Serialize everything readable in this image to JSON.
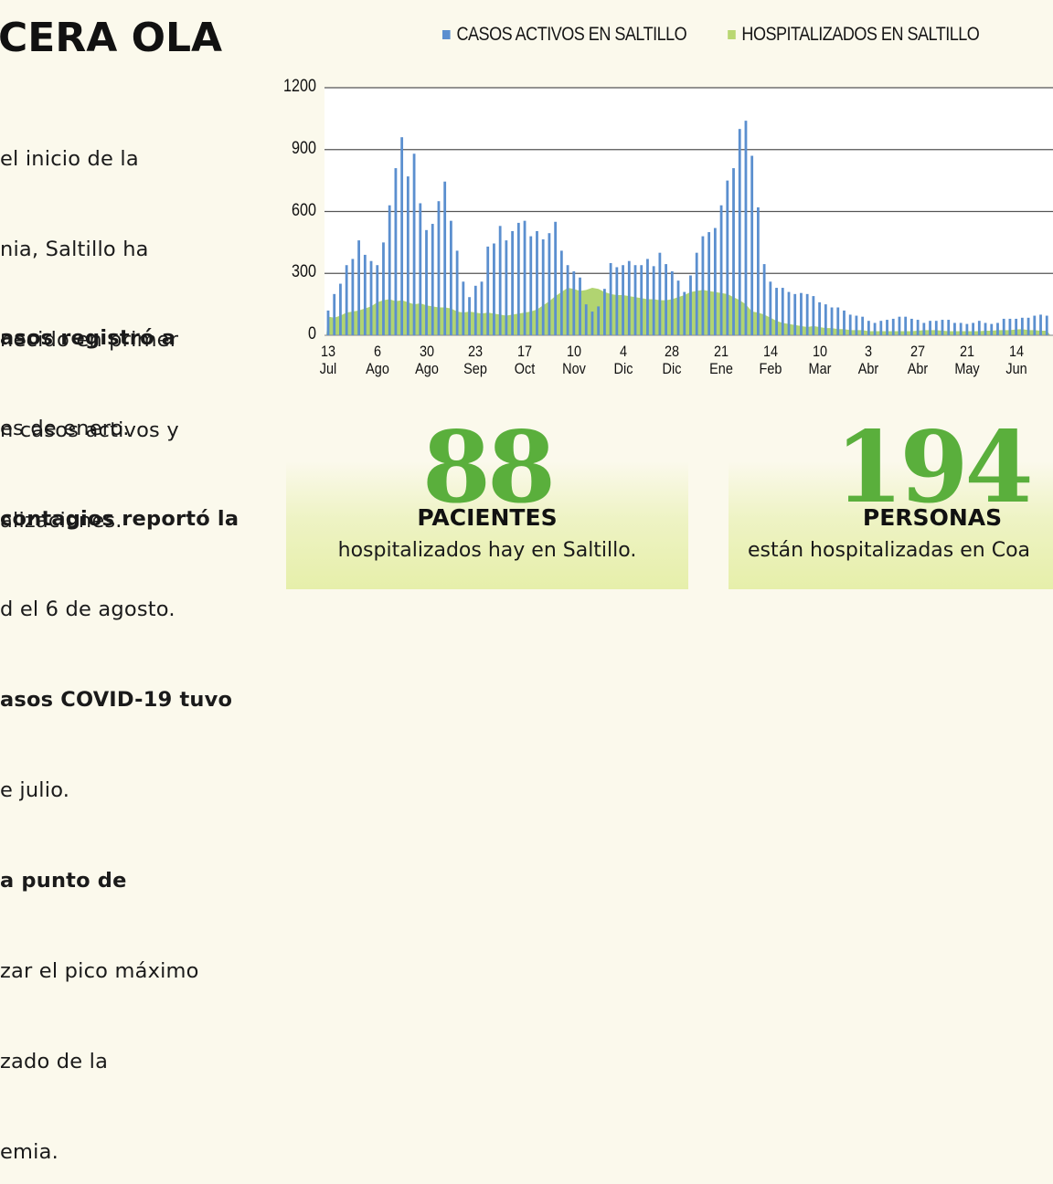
{
  "header": {
    "title": "CERA OLA"
  },
  "intro": {
    "lines": [
      "el inicio de la",
      "nia, Saltillo ha",
      "necido en primer",
      "n casos activos y",
      "alizaciones."
    ]
  },
  "facts": [
    {
      "bold": "asos registró a",
      "rest": ""
    },
    {
      "bold": "",
      "rest": "es de enero."
    },
    {
      "bold": "contagios reportó la",
      "rest": ""
    },
    {
      "bold": "",
      "rest": "d el 6 de agosto."
    },
    {
      "bold": "asos COVID-19 tuvo",
      "rest": ""
    },
    {
      "bold": "",
      "rest": "e julio."
    },
    {
      "bold": "a punto de",
      "rest": ""
    },
    {
      "bold": "",
      "rest": "zar el pico máximo"
    },
    {
      "bold": "",
      "rest": "zado de la"
    },
    {
      "bold": "",
      "rest": "emia."
    }
  ],
  "colors": {
    "active": "#5b8fcf",
    "hospital": "#a9cf62",
    "accent": "#5aaf3c",
    "background": "#fbf9ec"
  },
  "chart_data": {
    "type": "bar",
    "title": "",
    "xlabel": "",
    "ylabel": "",
    "ylim": [
      0,
      1200
    ],
    "yticks": [
      0,
      300,
      600,
      900,
      1200
    ],
    "grid": true,
    "legend_position": "top",
    "x_tick_labels": [
      {
        "day": "13",
        "month": "Jul",
        "index": 0
      },
      {
        "day": "6",
        "month": "Ago",
        "index": 8
      },
      {
        "day": "30",
        "month": "Ago",
        "index": 16
      },
      {
        "day": "23",
        "month": "Sep",
        "index": 24
      },
      {
        "day": "17",
        "month": "Oct",
        "index": 32
      },
      {
        "day": "10",
        "month": "Nov",
        "index": 40
      },
      {
        "day": "4",
        "month": "Dic",
        "index": 48
      },
      {
        "day": "28",
        "month": "Dic",
        "index": 56
      },
      {
        "day": "21",
        "month": "Ene",
        "index": 64
      },
      {
        "day": "14",
        "month": "Feb",
        "index": 72
      },
      {
        "day": "10",
        "month": "Mar",
        "index": 80
      },
      {
        "day": "3",
        "month": "Abr",
        "index": 88
      },
      {
        "day": "27",
        "month": "Abr",
        "index": 96
      },
      {
        "day": "21",
        "month": "May",
        "index": 104
      },
      {
        "day": "14",
        "month": "Jun",
        "index": 112
      }
    ],
    "series": [
      {
        "name": "CASOS ACTIVOS EN SALTILLO",
        "type": "bar",
        "color": "#5b8fcf",
        "values": [
          120,
          200,
          250,
          340,
          370,
          460,
          390,
          360,
          340,
          450,
          630,
          810,
          960,
          770,
          880,
          640,
          510,
          540,
          650,
          745,
          555,
          410,
          260,
          185,
          240,
          260,
          430,
          445,
          530,
          460,
          505,
          545,
          555,
          480,
          505,
          465,
          495,
          550,
          410,
          340,
          310,
          280,
          150,
          115,
          140,
          225,
          350,
          330,
          340,
          360,
          340,
          340,
          370,
          335,
          400,
          345,
          310,
          265,
          210,
          290,
          400,
          480,
          500,
          520,
          630,
          750,
          810,
          1000,
          1040,
          870,
          620,
          345,
          260,
          230,
          230,
          210,
          200,
          205,
          200,
          190,
          160,
          150,
          135,
          135,
          120,
          100,
          95,
          90,
          70,
          60,
          70,
          75,
          80,
          90,
          90,
          80,
          75,
          60,
          70,
          70,
          75,
          75,
          60,
          60,
          55,
          60,
          70,
          60,
          55,
          60,
          80,
          80,
          80,
          85,
          85,
          95,
          100,
          95
        ]
      },
      {
        "name": "HOSPITALIZADOS EN SALTILLO",
        "type": "area",
        "color": "#a9cf62",
        "values": [
          90,
          85,
          95,
          110,
          115,
          120,
          130,
          140,
          160,
          170,
          175,
          165,
          170,
          160,
          150,
          155,
          145,
          140,
          135,
          135,
          130,
          115,
          110,
          115,
          110,
          105,
          110,
          105,
          100,
          95,
          100,
          105,
          110,
          115,
          125,
          145,
          165,
          190,
          210,
          230,
          225,
          215,
          220,
          230,
          225,
          210,
          200,
          195,
          195,
          190,
          185,
          180,
          175,
          175,
          170,
          170,
          175,
          185,
          195,
          210,
          215,
          220,
          215,
          210,
          205,
          200,
          185,
          170,
          150,
          115,
          110,
          100,
          85,
          70,
          60,
          55,
          50,
          45,
          40,
          45,
          40,
          35,
          35,
          30,
          30,
          25,
          25,
          25,
          20,
          20,
          20,
          20,
          20,
          20,
          20,
          20,
          22,
          25,
          25,
          25,
          22,
          20,
          20,
          20,
          20,
          20,
          20,
          22,
          22,
          25,
          25,
          25,
          28,
          30,
          25,
          25,
          22,
          22
        ]
      }
    ]
  },
  "legend": {
    "active_label": "CASOS ACTIVOS EN SALTILLO",
    "hospital_label": "HOSPITALIZADOS EN SALTILLO"
  },
  "stats": [
    {
      "number": "88",
      "label": "PACIENTES",
      "description": "hospitalizados hay en Saltillo."
    },
    {
      "number": "194",
      "label": "PERSONAS",
      "description": "están hospitalizadas en Coa"
    }
  ]
}
